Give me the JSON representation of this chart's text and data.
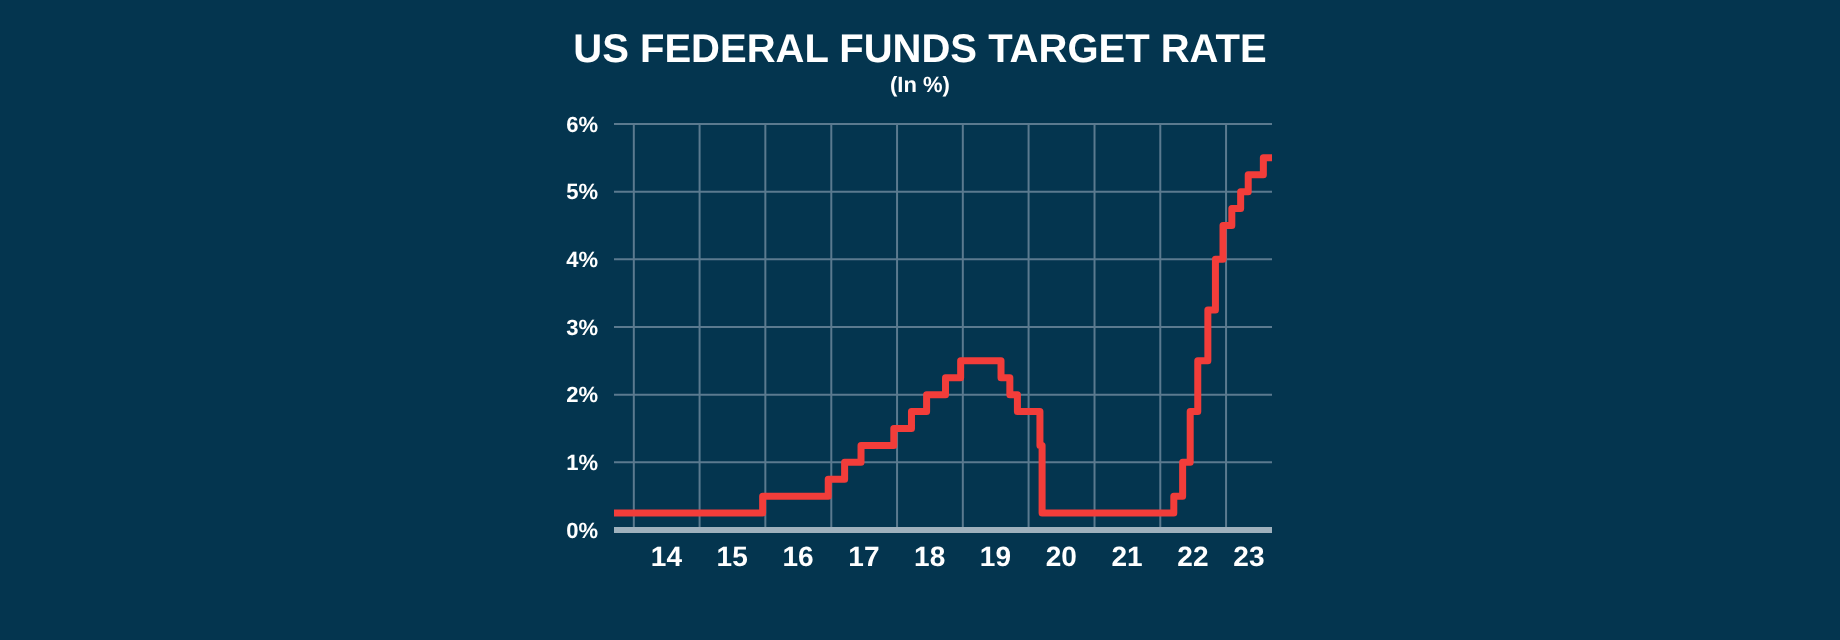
{
  "chart_data": {
    "type": "step",
    "title": "US FEDERAL FUNDS TARGET RATE",
    "subtitle": "(In %)",
    "x": [
      "2013-09-13",
      "2015-12-17",
      "2016-12-15",
      "2017-03-16",
      "2017-06-15",
      "2017-12-14",
      "2018-03-22",
      "2018-06-14",
      "2018-09-27",
      "2018-12-20",
      "2019-08-01",
      "2019-09-19",
      "2019-10-31",
      "2020-03-04",
      "2020-03-16",
      "2022-03-17",
      "2022-05-05",
      "2022-06-16",
      "2022-07-28",
      "2022-09-22",
      "2022-11-03",
      "2022-12-15",
      "2023-02-02",
      "2023-03-23",
      "2023-05-04",
      "2023-07-27",
      "2023-09-13"
    ],
    "series": [
      {
        "color": "#f23d3a",
        "values": [
          0.25,
          0.5,
          0.75,
          1.0,
          1.25,
          1.5,
          1.75,
          2.0,
          2.25,
          2.5,
          2.25,
          2.0,
          1.75,
          1.25,
          0.25,
          0.5,
          1.0,
          1.75,
          2.5,
          3.25,
          4.0,
          4.5,
          4.75,
          5.0,
          5.25,
          5.5,
          5.5
        ]
      }
    ],
    "xlim": [
      "2013-09-13",
      "2023-09-13"
    ],
    "xticks": [
      {
        "value": "2014-01-01",
        "label": null
      },
      {
        "value": "2015-01-01",
        "label": null
      },
      {
        "value": "2016-01-01",
        "label": null
      },
      {
        "value": "2017-01-01",
        "label": null
      },
      {
        "value": "2018-01-01",
        "label": null
      },
      {
        "value": "2019-01-01",
        "label": null
      },
      {
        "value": "2020-01-01",
        "label": null
      },
      {
        "value": "2021-01-01",
        "label": null
      },
      {
        "value": "2022-01-01",
        "label": null
      },
      {
        "value": "2023-01-01",
        "label": null
      },
      {
        "value": "2014-07-01",
        "label": "14"
      },
      {
        "value": "2015-07-01",
        "label": "15"
      },
      {
        "value": "2016-07-01",
        "label": "16"
      },
      {
        "value": "2017-07-01",
        "label": "17"
      },
      {
        "value": "2018-07-01",
        "label": "18"
      },
      {
        "value": "2019-07-01",
        "label": "19"
      },
      {
        "value": "2020-07-01",
        "label": "20"
      },
      {
        "value": "2021-07-01",
        "label": "21"
      },
      {
        "value": "2022-07-01",
        "label": "22"
      },
      {
        "value": "2023-05-08",
        "label": "23"
      }
    ],
    "ylim": [
      0,
      6
    ],
    "yticks": [
      {
        "value": 0,
        "label": "0%"
      },
      {
        "value": 1,
        "label": "1%"
      },
      {
        "value": 2,
        "label": "2%"
      },
      {
        "value": 3,
        "label": "3%"
      },
      {
        "value": 4,
        "label": "4%"
      },
      {
        "value": 5,
        "label": "5%"
      },
      {
        "value": 6,
        "label": "6%"
      }
    ],
    "grid": true,
    "legend": false,
    "marker": "none",
    "line_style": "solid"
  }
}
